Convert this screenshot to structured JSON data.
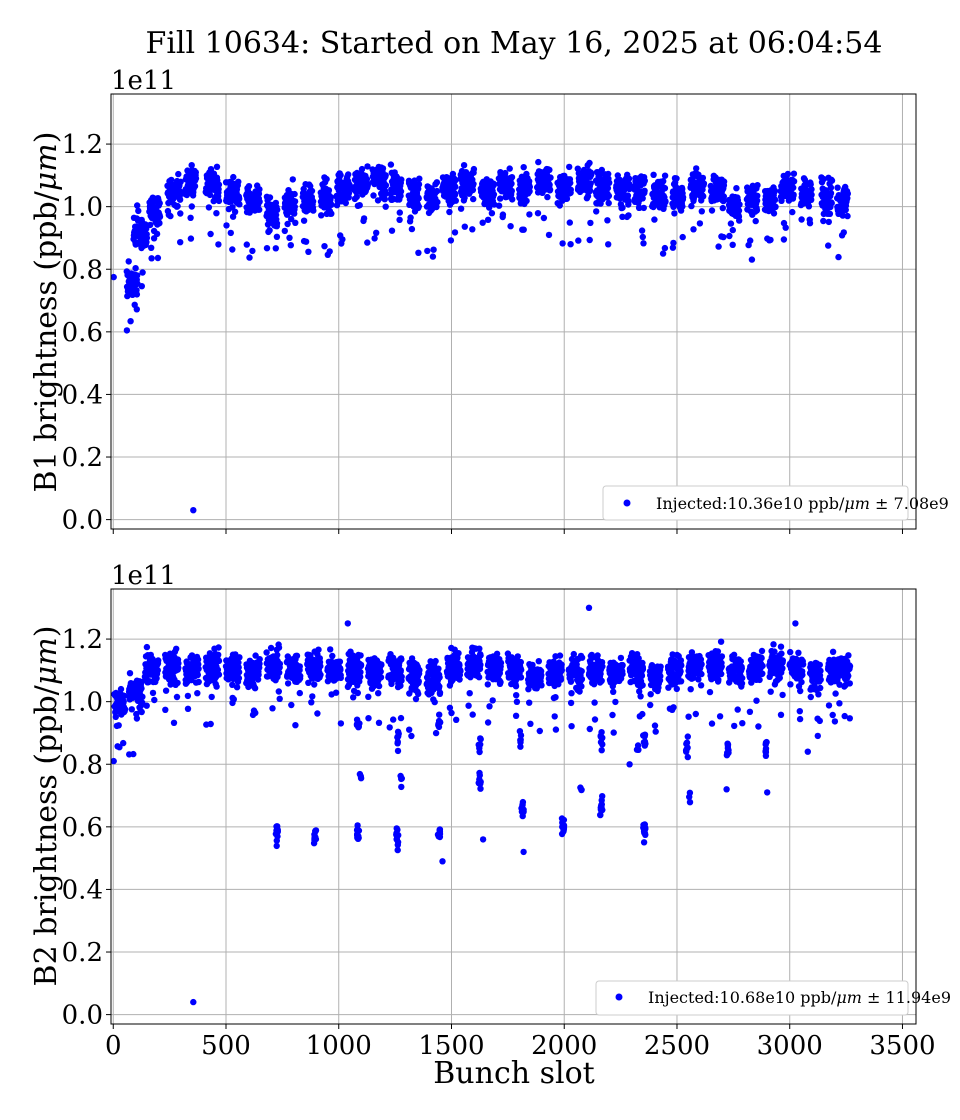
{
  "title": "Fill 10634: Started on May 16, 2025 at 06:04:54",
  "xlabel": "Bunch slot",
  "x_ticks": [
    0,
    500,
    1000,
    1500,
    2000,
    2500,
    3000,
    3500
  ],
  "colors": {
    "points": "#0000ff",
    "grid": "#b0b0b0",
    "axes": "#000000"
  },
  "chart_data": [
    {
      "type": "scatter",
      "ylabel_prefix": "B1 brightness (ppb/",
      "ylabel_unit": "μm",
      "ylabel_suffix": ")",
      "offset_text": "1e11",
      "xlim": [
        -10,
        3560
      ],
      "ylim": [
        -0.03,
        1.36
      ],
      "y_ticks": [
        "0.0",
        "0.2",
        "0.4",
        "0.6",
        "0.8",
        "1.0",
        "1.2"
      ],
      "y_tick_values": [
        0.0,
        0.2,
        0.4,
        0.6,
        0.8,
        1.0,
        1.2
      ],
      "grid": true,
      "legend_position": "lower right",
      "legend": {
        "prefix": "Injected:10.36e10 ppb/",
        "unit": "μm",
        "suffix": " ± 7.08e9"
      },
      "mean": 1.036,
      "std": 0.0708,
      "outliers": [
        [
          355,
          0.03
        ],
        [
          2,
          0.775
        ],
        [
          170,
          0.835
        ]
      ],
      "trains": [
        {
          "x0": 60,
          "n": 48,
          "spacing": 1,
          "level": 0.76
        },
        {
          "x0": 90,
          "n": 60,
          "spacing": 1,
          "level": 0.92
        },
        {
          "x0": 160,
          "n": 48,
          "spacing": 1,
          "level": 0.99
        },
        {
          "x0": 240,
          "n": 60,
          "spacing": 1,
          "level": 1.05
        },
        {
          "x0": 320,
          "n": 48,
          "spacing": 1,
          "level": 1.08
        },
        {
          "x0": 410,
          "n": 60,
          "spacing": 1,
          "level": 1.06
        },
        {
          "x0": 500,
          "n": 60,
          "spacing": 1,
          "level": 1.04
        },
        {
          "x0": 590,
          "n": 60,
          "spacing": 1,
          "level": 1.02
        },
        {
          "x0": 680,
          "n": 48,
          "spacing": 1,
          "level": 0.98
        },
        {
          "x0": 760,
          "n": 48,
          "spacing": 1,
          "level": 1.0
        },
        {
          "x0": 840,
          "n": 48,
          "spacing": 1,
          "level": 1.02
        },
        {
          "x0": 920,
          "n": 48,
          "spacing": 1,
          "level": 1.03
        },
        {
          "x0": 990,
          "n": 60,
          "spacing": 1,
          "level": 1.06
        },
        {
          "x0": 1070,
          "n": 60,
          "spacing": 1,
          "level": 1.07
        },
        {
          "x0": 1150,
          "n": 60,
          "spacing": 1,
          "level": 1.08
        },
        {
          "x0": 1230,
          "n": 48,
          "spacing": 1,
          "level": 1.06
        },
        {
          "x0": 1310,
          "n": 48,
          "spacing": 1,
          "level": 1.04
        },
        {
          "x0": 1390,
          "n": 48,
          "spacing": 1,
          "level": 1.03
        },
        {
          "x0": 1460,
          "n": 60,
          "spacing": 1,
          "level": 1.06
        },
        {
          "x0": 1540,
          "n": 60,
          "spacing": 1,
          "level": 1.07
        },
        {
          "x0": 1630,
          "n": 60,
          "spacing": 1,
          "level": 1.05
        },
        {
          "x0": 1710,
          "n": 60,
          "spacing": 1,
          "level": 1.07
        },
        {
          "x0": 1800,
          "n": 48,
          "spacing": 1,
          "level": 1.06
        },
        {
          "x0": 1880,
          "n": 60,
          "spacing": 1,
          "level": 1.08
        },
        {
          "x0": 1970,
          "n": 60,
          "spacing": 1,
          "level": 1.06
        },
        {
          "x0": 2060,
          "n": 60,
          "spacing": 1,
          "level": 1.08
        },
        {
          "x0": 2140,
          "n": 60,
          "spacing": 1,
          "level": 1.06
        },
        {
          "x0": 2230,
          "n": 60,
          "spacing": 1,
          "level": 1.05
        },
        {
          "x0": 2310,
          "n": 48,
          "spacing": 1,
          "level": 1.05
        },
        {
          "x0": 2390,
          "n": 60,
          "spacing": 1,
          "level": 1.04
        },
        {
          "x0": 2480,
          "n": 48,
          "spacing": 1,
          "level": 1.03
        },
        {
          "x0": 2560,
          "n": 60,
          "spacing": 1,
          "level": 1.07
        },
        {
          "x0": 2650,
          "n": 60,
          "spacing": 1,
          "level": 1.05
        },
        {
          "x0": 2730,
          "n": 48,
          "spacing": 1,
          "level": 1.0
        },
        {
          "x0": 2810,
          "n": 48,
          "spacing": 1,
          "level": 1.02
        },
        {
          "x0": 2890,
          "n": 48,
          "spacing": 1,
          "level": 1.02
        },
        {
          "x0": 2960,
          "n": 60,
          "spacing": 1,
          "level": 1.06
        },
        {
          "x0": 3050,
          "n": 48,
          "spacing": 1,
          "level": 1.04
        },
        {
          "x0": 3140,
          "n": 48,
          "spacing": 1,
          "level": 1.03
        },
        {
          "x0": 3210,
          "n": 48,
          "spacing": 1,
          "level": 1.02
        }
      ]
    },
    {
      "type": "scatter",
      "ylabel_prefix": "B2 brightness (ppb/",
      "ylabel_unit": "μm",
      "ylabel_suffix": ")",
      "offset_text": "1e11",
      "xlim": [
        -10,
        3560
      ],
      "ylim": [
        -0.03,
        1.36
      ],
      "y_ticks": [
        "0.0",
        "0.2",
        "0.4",
        "0.6",
        "0.8",
        "1.0",
        "1.2"
      ],
      "y_tick_values": [
        0.0,
        0.2,
        0.4,
        0.6,
        0.8,
        1.0,
        1.2
      ],
      "grid": true,
      "legend_position": "lower right",
      "legend": {
        "prefix": "Injected:10.68e10 ppb/",
        "unit": "μm",
        "suffix": " ± 11.94e9"
      },
      "mean": 1.068,
      "std": 0.1194,
      "outliers": [
        [
          355,
          0.04
        ],
        [
          2,
          0.81
        ],
        [
          1040,
          1.25
        ],
        [
          2110,
          1.3
        ],
        [
          3025,
          1.25
        ],
        [
          1820,
          0.52
        ],
        [
          1460,
          0.49
        ],
        [
          2290,
          0.8
        ],
        [
          2720,
          0.72
        ],
        [
          2900,
          0.71
        ],
        [
          3080,
          0.84
        ],
        [
          1640,
          0.56
        ]
      ],
      "trains": [
        {
          "x0": 5,
          "n": 48,
          "spacing": 1,
          "level": 0.99
        },
        {
          "x0": 70,
          "n": 60,
          "spacing": 1,
          "level": 1.02
        },
        {
          "x0": 140,
          "n": 60,
          "spacing": 1,
          "level": 1.1
        },
        {
          "x0": 230,
          "n": 60,
          "spacing": 1,
          "level": 1.11
        },
        {
          "x0": 320,
          "n": 60,
          "spacing": 1,
          "level": 1.1
        },
        {
          "x0": 410,
          "n": 60,
          "spacing": 1,
          "level": 1.11
        },
        {
          "x0": 500,
          "n": 60,
          "spacing": 1,
          "level": 1.1
        },
        {
          "x0": 590,
          "n": 60,
          "spacing": 1,
          "level": 1.1
        },
        {
          "x0": 680,
          "n": 60,
          "spacing": 1,
          "level": 1.12
        },
        {
          "x0": 770,
          "n": 60,
          "spacing": 1,
          "level": 1.1
        },
        {
          "x0": 860,
          "n": 60,
          "spacing": 1,
          "level": 1.11
        },
        {
          "x0": 950,
          "n": 60,
          "spacing": 1,
          "level": 1.1
        },
        {
          "x0": 1040,
          "n": 60,
          "spacing": 1,
          "level": 1.1
        },
        {
          "x0": 1130,
          "n": 60,
          "spacing": 1,
          "level": 1.09
        },
        {
          "x0": 1220,
          "n": 60,
          "spacing": 1,
          "level": 1.1
        },
        {
          "x0": 1310,
          "n": 48,
          "spacing": 1,
          "level": 1.08
        },
        {
          "x0": 1390,
          "n": 60,
          "spacing": 1,
          "level": 1.07
        },
        {
          "x0": 1480,
          "n": 60,
          "spacing": 1,
          "level": 1.11
        },
        {
          "x0": 1570,
          "n": 60,
          "spacing": 1,
          "level": 1.12
        },
        {
          "x0": 1660,
          "n": 60,
          "spacing": 1,
          "level": 1.11
        },
        {
          "x0": 1750,
          "n": 60,
          "spacing": 1,
          "level": 1.1
        },
        {
          "x0": 1840,
          "n": 60,
          "spacing": 1,
          "level": 1.08
        },
        {
          "x0": 1930,
          "n": 60,
          "spacing": 1,
          "level": 1.09
        },
        {
          "x0": 2020,
          "n": 60,
          "spacing": 1,
          "level": 1.1
        },
        {
          "x0": 2110,
          "n": 60,
          "spacing": 1,
          "level": 1.1
        },
        {
          "x0": 2200,
          "n": 60,
          "spacing": 1,
          "level": 1.09
        },
        {
          "x0": 2290,
          "n": 60,
          "spacing": 1,
          "level": 1.1
        },
        {
          "x0": 2380,
          "n": 48,
          "spacing": 1,
          "level": 1.08
        },
        {
          "x0": 2460,
          "n": 60,
          "spacing": 1,
          "level": 1.1
        },
        {
          "x0": 2550,
          "n": 60,
          "spacing": 1,
          "level": 1.11
        },
        {
          "x0": 2640,
          "n": 60,
          "spacing": 1,
          "level": 1.12
        },
        {
          "x0": 2730,
          "n": 60,
          "spacing": 1,
          "level": 1.1
        },
        {
          "x0": 2820,
          "n": 60,
          "spacing": 1,
          "level": 1.11
        },
        {
          "x0": 2910,
          "n": 60,
          "spacing": 1,
          "level": 1.12
        },
        {
          "x0": 3000,
          "n": 60,
          "spacing": 1,
          "level": 1.11
        },
        {
          "x0": 3090,
          "n": 48,
          "spacing": 1,
          "level": 1.08
        },
        {
          "x0": 3170,
          "n": 48,
          "spacing": 1,
          "level": 1.1
        },
        {
          "x0": 3220,
          "n": 48,
          "spacing": 1,
          "level": 1.1
        }
      ],
      "low_groups": [
        {
          "x0": 720,
          "n": 12,
          "level": 0.58
        },
        {
          "x0": 890,
          "n": 12,
          "level": 0.57
        },
        {
          "x0": 1080,
          "n": 12,
          "level": 0.58
        },
        {
          "x0": 1255,
          "n": 12,
          "level": 0.56
        },
        {
          "x0": 1440,
          "n": 12,
          "level": 0.58
        },
        {
          "x0": 1620,
          "n": 10,
          "level": 0.74
        },
        {
          "x0": 1810,
          "n": 8,
          "level": 0.66
        },
        {
          "x0": 1990,
          "n": 12,
          "level": 0.6
        },
        {
          "x0": 2160,
          "n": 12,
          "level": 0.66
        },
        {
          "x0": 2350,
          "n": 12,
          "level": 0.59
        },
        {
          "x0": 2540,
          "n": 8,
          "level": 0.85
        },
        {
          "x0": 2720,
          "n": 8,
          "level": 0.85
        },
        {
          "x0": 2890,
          "n": 8,
          "level": 0.85
        },
        {
          "x0": 1260,
          "n": 8,
          "level": 0.88
        },
        {
          "x0": 1620,
          "n": 6,
          "level": 0.86
        },
        {
          "x0": 1800,
          "n": 6,
          "level": 0.88
        },
        {
          "x0": 2160,
          "n": 8,
          "level": 0.88
        },
        {
          "x0": 2350,
          "n": 8,
          "level": 0.88
        },
        {
          "x0": 1080,
          "n": 6,
          "level": 0.92
        },
        {
          "x0": 1440,
          "n": 6,
          "level": 0.93
        },
        {
          "x0": 1270,
          "n": 4,
          "level": 0.76
        },
        {
          "x0": 1090,
          "n": 3,
          "level": 0.76
        },
        {
          "x0": 2070,
          "n": 3,
          "level": 0.73
        },
        {
          "x0": 2320,
          "n": 4,
          "level": 0.86
        },
        {
          "x0": 2550,
          "n": 3,
          "level": 0.69
        }
      ]
    }
  ]
}
